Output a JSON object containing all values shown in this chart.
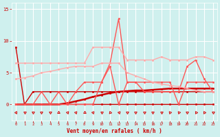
{
  "x": [
    0,
    1,
    2,
    3,
    4,
    5,
    6,
    7,
    8,
    9,
    10,
    11,
    12,
    13,
    14,
    15,
    16,
    17,
    18,
    19,
    20,
    21,
    22,
    23
  ],
  "series": [
    {
      "name": "dark_flat",
      "color": "#cc0000",
      "lw": 1.0,
      "marker": "s",
      "ms": 1.8,
      "y": [
        0,
        0,
        2,
        2,
        2,
        2,
        2,
        2,
        2,
        2,
        2,
        2,
        2,
        2,
        2,
        2,
        2,
        2,
        2,
        2,
        2,
        2,
        2,
        2
      ]
    },
    {
      "name": "dark_spike",
      "color": "#cc0000",
      "lw": 1.0,
      "marker": "D",
      "ms": 1.8,
      "y": [
        9,
        0,
        0,
        0,
        0,
        0,
        0,
        0,
        0,
        0,
        0,
        0,
        0,
        0,
        0,
        0,
        0,
        0,
        0,
        0,
        0,
        0,
        0,
        0
      ]
    },
    {
      "name": "dark_growing",
      "color": "#cc0000",
      "lw": 1.8,
      "marker": "o",
      "ms": 1.8,
      "y": [
        0,
        0,
        0,
        0,
        0,
        0,
        0.2,
        0.5,
        0.8,
        1.2,
        1.5,
        1.8,
        2.0,
        2.1,
        2.2,
        2.2,
        2.3,
        2.4,
        2.5,
        2.5,
        2.5,
        2.5,
        2.5,
        2.5
      ]
    },
    {
      "name": "medium_zigzag",
      "color": "#ff5555",
      "lw": 1.0,
      "marker": "o",
      "ms": 1.8,
      "y": [
        0,
        0,
        0,
        2,
        0,
        2,
        0,
        2,
        3.5,
        3.5,
        3.5,
        6,
        0,
        3.5,
        3.5,
        3.5,
        3.5,
        3.5,
        3.5,
        0,
        3.5,
        3.5,
        3.5,
        3.5
      ]
    },
    {
      "name": "medium_big",
      "color": "#ff5555",
      "lw": 1.0,
      "marker": "o",
      "ms": 1.8,
      "y": [
        0,
        0,
        0,
        0,
        0,
        0,
        0,
        0,
        0,
        0,
        3.5,
        6.5,
        13.5,
        3.5,
        3.5,
        2,
        2,
        2,
        2,
        2,
        6,
        7,
        4,
        2
      ]
    },
    {
      "name": "light_lower",
      "color": "#ffaaaa",
      "lw": 1.0,
      "marker": "o",
      "ms": 1.8,
      "y": [
        4,
        4.2,
        4.5,
        5,
        5.2,
        5.5,
        5.8,
        6,
        6,
        6,
        6.5,
        6.5,
        6.5,
        5,
        4.5,
        4,
        3.5,
        3.2,
        3,
        2.8,
        2.5,
        2.2,
        2,
        2
      ]
    },
    {
      "name": "light_upper",
      "color": "#ffaaaa",
      "lw": 1.0,
      "marker": "o",
      "ms": 1.8,
      "y": [
        6.5,
        6.5,
        6.5,
        6.5,
        6.5,
        6.5,
        6.5,
        6.5,
        6.5,
        9,
        9,
        9,
        9,
        7,
        7,
        7,
        7,
        7.5,
        7,
        7,
        7,
        7.5,
        7.5,
        7
      ]
    }
  ],
  "xlabel": "Vent moyen/en rafales ( km/h )",
  "xlim": [
    -0.5,
    23.5
  ],
  "ylim": [
    -2.5,
    16
  ],
  "yticks": [
    0,
    5,
    10,
    15
  ],
  "xticks": [
    0,
    1,
    2,
    3,
    4,
    5,
    6,
    7,
    8,
    9,
    10,
    11,
    12,
    13,
    14,
    15,
    16,
    17,
    18,
    19,
    20,
    21,
    22,
    23
  ],
  "bg_color": "#cff0ee",
  "grid_color": "#ffffff",
  "tick_color": "#cc0000",
  "label_color": "#cc0000",
  "wind_y": -1.3,
  "wind_angles": [
    210,
    180,
    180,
    180,
    180,
    0,
    80,
    80,
    120,
    200,
    180,
    140,
    80,
    180,
    180,
    180,
    180,
    180,
    160,
    160,
    180,
    150,
    150,
    180
  ]
}
